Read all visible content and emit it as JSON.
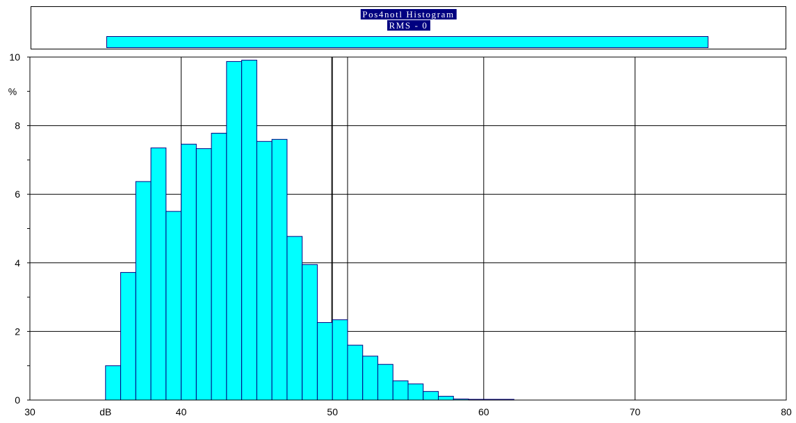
{
  "header": {
    "title": "Pos4notl Histogram",
    "subtitle": "RMS - 0",
    "level_percent": 0
  },
  "colors": {
    "bar_fill": "#00ffff",
    "bar_stroke": "#000080",
    "title_bg": "#000080",
    "grid": "#000000"
  },
  "chart_data": {
    "type": "bar",
    "title": "Pos4notl Histogram",
    "subtitle": "RMS - 0",
    "xlabel": "dB",
    "ylabel": "%",
    "xlim": [
      30,
      80
    ],
    "ylim": [
      0,
      10
    ],
    "x_ticks": [
      "30",
      "40",
      "50",
      "60",
      "70",
      "80"
    ],
    "y_ticks": [
      "0",
      "2",
      "4",
      "6",
      "8",
      "10"
    ],
    "grid": true,
    "bin_width": 1,
    "bins": [
      {
        "x": 35.5,
        "value": 1.0
      },
      {
        "x": 36.5,
        "value": 3.72
      },
      {
        "x": 37.5,
        "value": 6.37
      },
      {
        "x": 38.5,
        "value": 7.35
      },
      {
        "x": 39.5,
        "value": 5.5
      },
      {
        "x": 40.5,
        "value": 7.46
      },
      {
        "x": 41.5,
        "value": 7.33
      },
      {
        "x": 42.5,
        "value": 7.78
      },
      {
        "x": 43.5,
        "value": 9.87
      },
      {
        "x": 44.5,
        "value": 9.91
      },
      {
        "x": 45.5,
        "value": 7.54
      },
      {
        "x": 46.5,
        "value": 7.6
      },
      {
        "x": 47.5,
        "value": 4.77
      },
      {
        "x": 48.5,
        "value": 3.95
      },
      {
        "x": 49.5,
        "value": 2.26
      },
      {
        "x": 50.5,
        "value": 2.34
      },
      {
        "x": 51.5,
        "value": 1.6
      },
      {
        "x": 52.5,
        "value": 1.28
      },
      {
        "x": 53.5,
        "value": 1.04
      },
      {
        "x": 54.5,
        "value": 0.56
      },
      {
        "x": 55.5,
        "value": 0.47
      },
      {
        "x": 56.5,
        "value": 0.25
      },
      {
        "x": 57.5,
        "value": 0.11
      },
      {
        "x": 58.5,
        "value": 0.03
      },
      {
        "x": 59.5,
        "value": 0.02
      },
      {
        "x": 60.5,
        "value": 0.02
      },
      {
        "x": 61.5,
        "value": 0.02
      }
    ],
    "extra_vertical_lines": [
      49.95,
      51.0
    ]
  }
}
